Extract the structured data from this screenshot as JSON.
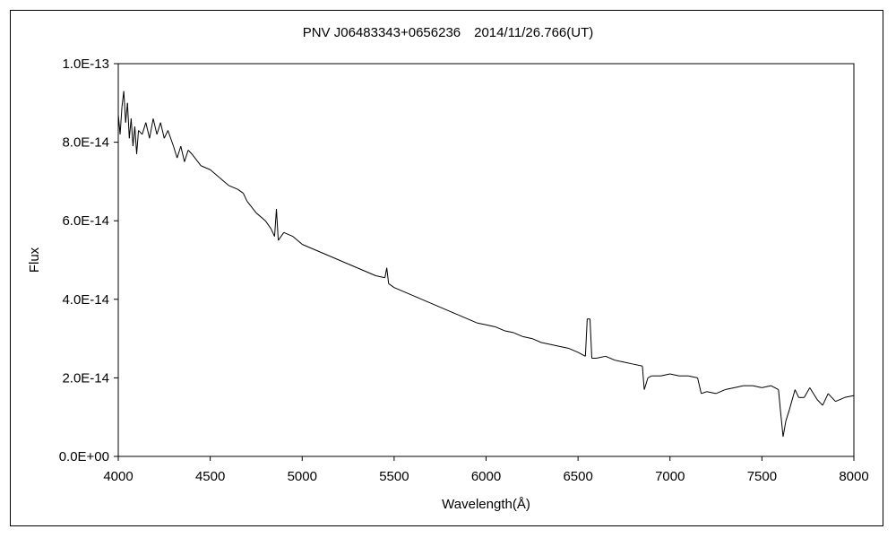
{
  "chart_data": {
    "type": "line",
    "title": "PNV J06483343+0656236　2014/11/26.766(UT)",
    "xlabel": "Wavelength(Å)",
    "ylabel": "Flux",
    "xlim": [
      4000,
      8000
    ],
    "ylim": [
      0,
      1e-13
    ],
    "x_ticks": [
      4000,
      4500,
      5000,
      5500,
      6000,
      6500,
      7000,
      7500,
      8000
    ],
    "y_ticks": [
      0,
      2e-14,
      4e-14,
      6e-14,
      8e-14,
      1e-13
    ],
    "x_tick_labels": [
      "4000",
      "4500",
      "5000",
      "5500",
      "6000",
      "6500",
      "7000",
      "7500",
      "8000"
    ],
    "y_tick_labels": [
      "0.0E+00",
      "2.0E-14",
      "4.0E-14",
      "6.0E-14",
      "8.0E-14",
      "1.0E-13"
    ],
    "grid": false,
    "legend": "none",
    "series": [
      {
        "color": "#000000",
        "points": [
          [
            4000,
            8.7e-14
          ],
          [
            4010,
            8.2e-14
          ],
          [
            4020,
            8.9e-14
          ],
          [
            4030,
            9.3e-14
          ],
          [
            4040,
            8.5e-14
          ],
          [
            4050,
            9e-14
          ],
          [
            4060,
            8.1e-14
          ],
          [
            4070,
            8.6e-14
          ],
          [
            4080,
            7.9e-14
          ],
          [
            4090,
            8.4e-14
          ],
          [
            4100,
            7.7e-14
          ],
          [
            4110,
            8.3e-14
          ],
          [
            4130,
            8.2e-14
          ],
          [
            4150,
            8.5e-14
          ],
          [
            4170,
            8.1e-14
          ],
          [
            4190,
            8.6e-14
          ],
          [
            4210,
            8.2e-14
          ],
          [
            4230,
            8.5e-14
          ],
          [
            4250,
            8.1e-14
          ],
          [
            4270,
            8.3e-14
          ],
          [
            4300,
            7.9e-14
          ],
          [
            4320,
            7.6e-14
          ],
          [
            4340,
            7.9e-14
          ],
          [
            4360,
            7.5e-14
          ],
          [
            4380,
            7.8e-14
          ],
          [
            4400,
            7.7e-14
          ],
          [
            4450,
            7.4e-14
          ],
          [
            4500,
            7.3e-14
          ],
          [
            4550,
            7.1e-14
          ],
          [
            4600,
            6.9e-14
          ],
          [
            4650,
            6.8e-14
          ],
          [
            4680,
            6.7e-14
          ],
          [
            4700,
            6.5e-14
          ],
          [
            4750,
            6.2e-14
          ],
          [
            4800,
            6e-14
          ],
          [
            4830,
            5.8e-14
          ],
          [
            4850,
            5.6e-14
          ],
          [
            4860,
            6.3e-14
          ],
          [
            4870,
            5.5e-14
          ],
          [
            4900,
            5.7e-14
          ],
          [
            4950,
            5.6e-14
          ],
          [
            5000,
            5.4e-14
          ],
          [
            5050,
            5.3e-14
          ],
          [
            5100,
            5.2e-14
          ],
          [
            5150,
            5.1e-14
          ],
          [
            5200,
            5e-14
          ],
          [
            5250,
            4.9e-14
          ],
          [
            5300,
            4.8e-14
          ],
          [
            5350,
            4.7e-14
          ],
          [
            5400,
            4.6e-14
          ],
          [
            5450,
            4.55e-14
          ],
          [
            5460,
            4.8e-14
          ],
          [
            5470,
            4.4e-14
          ],
          [
            5500,
            4.3e-14
          ],
          [
            5550,
            4.2e-14
          ],
          [
            5600,
            4.1e-14
          ],
          [
            5650,
            4e-14
          ],
          [
            5700,
            3.9e-14
          ],
          [
            5750,
            3.8e-14
          ],
          [
            5800,
            3.7e-14
          ],
          [
            5850,
            3.6e-14
          ],
          [
            5900,
            3.5e-14
          ],
          [
            5950,
            3.4e-14
          ],
          [
            6000,
            3.35e-14
          ],
          [
            6050,
            3.3e-14
          ],
          [
            6100,
            3.2e-14
          ],
          [
            6150,
            3.15e-14
          ],
          [
            6200,
            3.05e-14
          ],
          [
            6250,
            3e-14
          ],
          [
            6300,
            2.9e-14
          ],
          [
            6350,
            2.85e-14
          ],
          [
            6400,
            2.8e-14
          ],
          [
            6450,
            2.75e-14
          ],
          [
            6500,
            2.65e-14
          ],
          [
            6540,
            2.55e-14
          ],
          [
            6550,
            3.5e-14
          ],
          [
            6565,
            3.5e-14
          ],
          [
            6575,
            2.5e-14
          ],
          [
            6600,
            2.5e-14
          ],
          [
            6650,
            2.55e-14
          ],
          [
            6700,
            2.45e-14
          ],
          [
            6750,
            2.4e-14
          ],
          [
            6800,
            2.35e-14
          ],
          [
            6850,
            2.3e-14
          ],
          [
            6860,
            1.7e-14
          ],
          [
            6880,
            2e-14
          ],
          [
            6900,
            2.05e-14
          ],
          [
            6950,
            2.05e-14
          ],
          [
            7000,
            2.1e-14
          ],
          [
            7050,
            2.05e-14
          ],
          [
            7100,
            2.05e-14
          ],
          [
            7150,
            2e-14
          ],
          [
            7170,
            1.6e-14
          ],
          [
            7200,
            1.65e-14
          ],
          [
            7250,
            1.6e-14
          ],
          [
            7300,
            1.7e-14
          ],
          [
            7350,
            1.75e-14
          ],
          [
            7400,
            1.8e-14
          ],
          [
            7450,
            1.8e-14
          ],
          [
            7500,
            1.75e-14
          ],
          [
            7550,
            1.8e-14
          ],
          [
            7590,
            1.7e-14
          ],
          [
            7600,
            1.2e-14
          ],
          [
            7615,
            5e-15
          ],
          [
            7630,
            9e-15
          ],
          [
            7650,
            1.2e-14
          ],
          [
            7680,
            1.7e-14
          ],
          [
            7700,
            1.5e-14
          ],
          [
            7730,
            1.5e-14
          ],
          [
            7760,
            1.75e-14
          ],
          [
            7800,
            1.45e-14
          ],
          [
            7830,
            1.3e-14
          ],
          [
            7860,
            1.6e-14
          ],
          [
            7900,
            1.4e-14
          ],
          [
            7950,
            1.5e-14
          ],
          [
            8000,
            1.55e-14
          ]
        ]
      }
    ]
  }
}
